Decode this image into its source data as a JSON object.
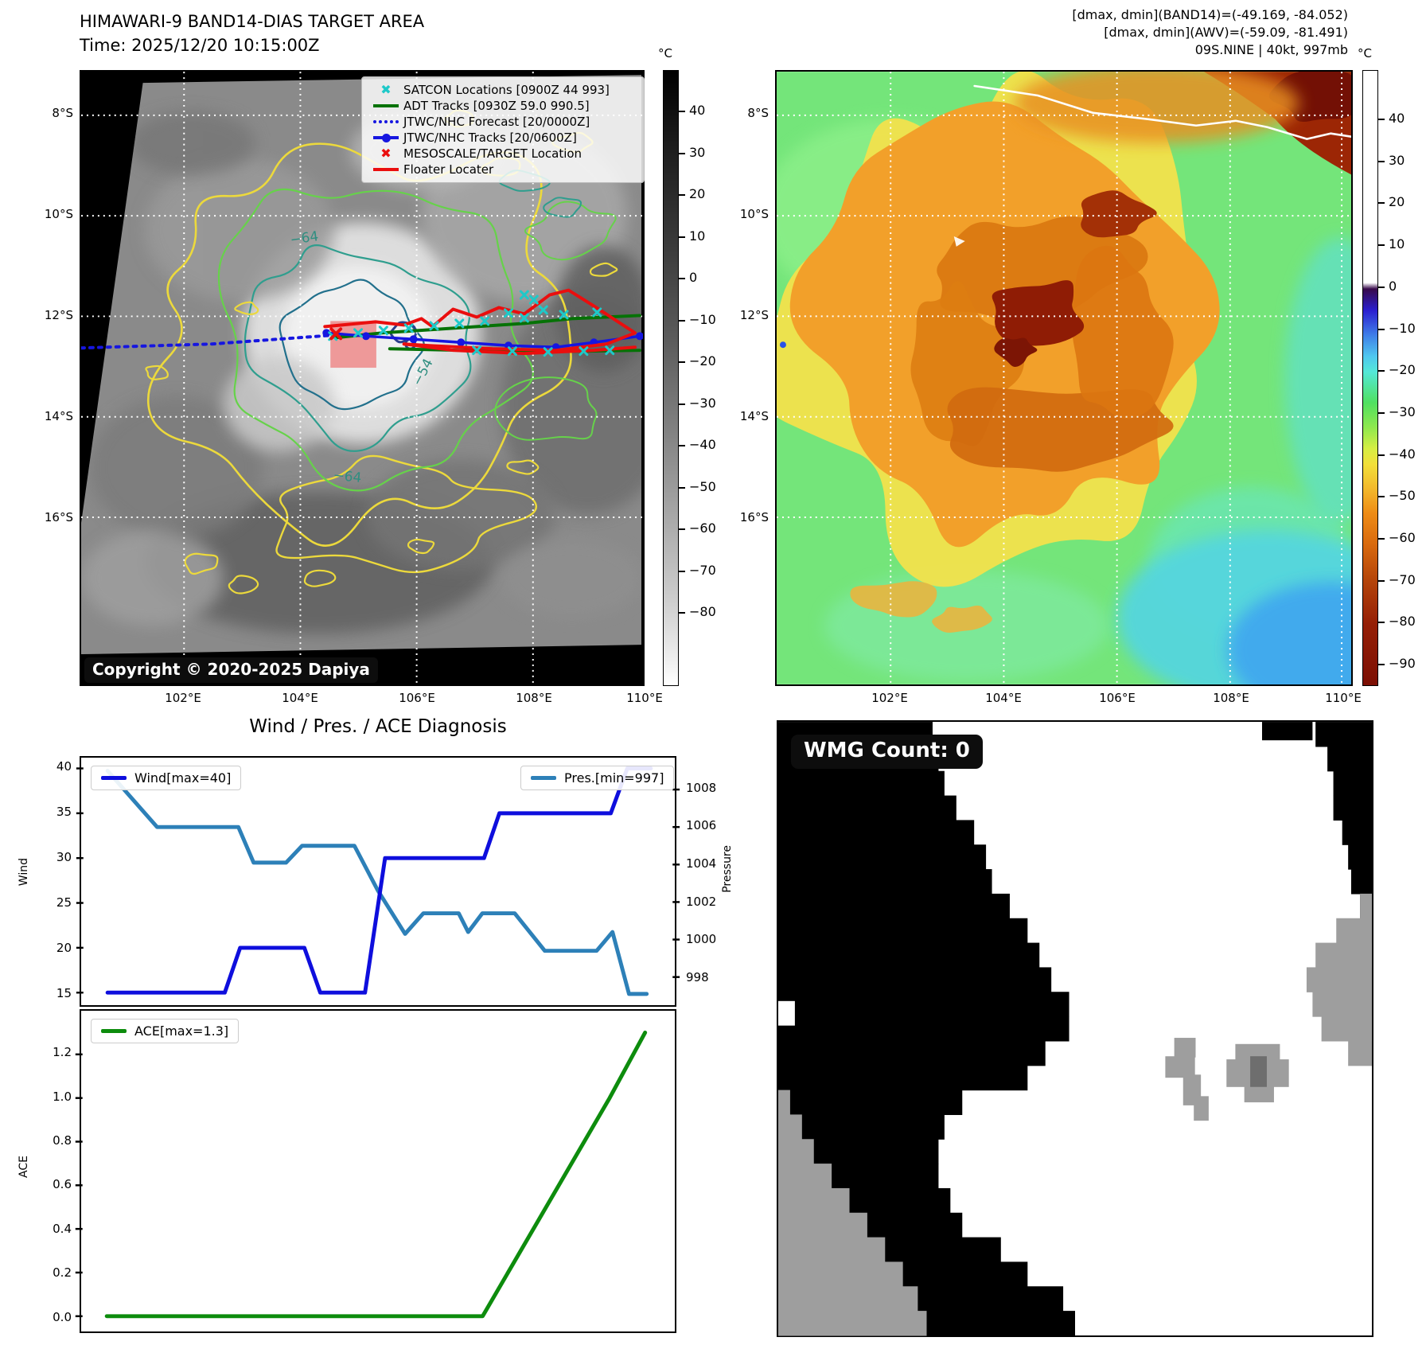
{
  "top_left": {
    "title": "HIMAWARI-9 BAND14-DIAS TARGET AREA",
    "time": "Time: 2025/12/20 10:15:00Z",
    "copyright": "Copyright © 2020-2025 Dapiya",
    "legend_items": [
      {
        "type": "cyan-x",
        "label": "SATCON Locations [0900Z 44 993]"
      },
      {
        "type": "green-line",
        "label": "ADT Tracks [0930Z 59.0 990.5]"
      },
      {
        "type": "blue-dotted",
        "label": "JTWC/NHC Forecast [20/0000Z]"
      },
      {
        "type": "blue-linedot",
        "label": "JTWC/NHC Tracks [20/0600Z]"
      },
      {
        "type": "red-x",
        "label": "MESOSCALE/TARGET Location"
      },
      {
        "type": "red-line",
        "label": "Floater Locater"
      }
    ],
    "contour_labels": [
      "-64",
      "-64",
      "-54"
    ],
    "lat_ticks": [
      "8°S",
      "10°S",
      "12°S",
      "14°S",
      "16°S"
    ],
    "lon_ticks": [
      "102°E",
      "104°E",
      "106°E",
      "108°E",
      "110°E"
    ],
    "colorbar": {
      "unit": "°C",
      "ticks": [
        40,
        30,
        20,
        10,
        0,
        -10,
        -20,
        -30,
        -40,
        -50,
        -60,
        -70,
        -80
      ]
    },
    "tracks": {
      "forecast_dotted": [
        [
          0,
          349
        ],
        [
          165,
          344
        ],
        [
          330,
          332
        ]
      ],
      "jtwc": [
        [
          310,
          330
        ],
        [
          360,
          334
        ],
        [
          420,
          338
        ],
        [
          480,
          342
        ],
        [
          540,
          346
        ],
        [
          600,
          348
        ],
        [
          648,
          342
        ],
        [
          706,
          334
        ]
      ],
      "adt": [
        [
          322,
          336
        ],
        [
          380,
          330
        ],
        [
          440,
          326
        ],
        [
          500,
          322
        ],
        [
          560,
          318
        ],
        [
          620,
          312
        ],
        [
          706,
          308
        ]
      ],
      "adt2": [
        [
          390,
          350
        ],
        [
          480,
          352
        ],
        [
          560,
          354
        ],
        [
          706,
          352
        ]
      ],
      "floater": [
        [
          308,
          322
        ],
        [
          372,
          316
        ],
        [
          408,
          320
        ],
        [
          430,
          312
        ],
        [
          444,
          322
        ],
        [
          470,
          300
        ],
        [
          500,
          310
        ],
        [
          528,
          298
        ],
        [
          560,
          306
        ],
        [
          592,
          282
        ],
        [
          616,
          276
        ],
        [
          648,
          296
        ],
        [
          700,
          330
        ],
        [
          664,
          344
        ],
        [
          600,
          352
        ],
        [
          520,
          350
        ],
        [
          440,
          346
        ],
        [
          408,
          344
        ]
      ],
      "floater2": [
        [
          408,
          344
        ],
        [
          470,
          352
        ],
        [
          560,
          356
        ],
        [
          648,
          352
        ],
        [
          700,
          348
        ]
      ],
      "satcon": [
        [
          318,
          334
        ],
        [
          350,
          330
        ],
        [
          382,
          327
        ],
        [
          414,
          324
        ],
        [
          446,
          321
        ],
        [
          478,
          318
        ],
        [
          510,
          315
        ],
        [
          560,
          311
        ],
        [
          610,
          307
        ],
        [
          652,
          304
        ],
        [
          584,
          301
        ],
        [
          540,
          305
        ],
        [
          500,
          352
        ],
        [
          545,
          353
        ],
        [
          590,
          354
        ],
        [
          635,
          353
        ],
        [
          668,
          352
        ],
        [
          560,
          282
        ],
        [
          572,
          288
        ]
      ],
      "target_xy": [
        322,
        331
      ],
      "target_rect": [
        315,
        315,
        58,
        59
      ]
    }
  },
  "top_right": {
    "header_lines": [
      "[dmax, dmin](BAND14)=(-49.169, -84.052)",
      "[dmax, dmin](AWV)=(-59.09, -81.491)",
      "09S.NINE | 40kt, 997mb"
    ],
    "lat_ticks": [
      "8°S",
      "10°S",
      "12°S",
      "14°S",
      "16°S"
    ],
    "lon_ticks": [
      "102°E",
      "104°E",
      "106°E",
      "108°E",
      "110°E"
    ],
    "colorbar": {
      "unit": "°C",
      "ticks": [
        40,
        30,
        20,
        10,
        0,
        -10,
        -20,
        -30,
        -40,
        -50,
        -60,
        -70,
        -80,
        -90
      ]
    }
  },
  "diagnosis": {
    "title": "Wind / Pres. / ACE Diagnosis",
    "wind_axis_label": "Wind",
    "pressure_axis_label": "Pressure",
    "ace_axis_label": "ACE"
  },
  "wmg": {
    "count_label": "WMG Count: 0"
  },
  "chart_data": [
    {
      "type": "line",
      "name": "Wind",
      "legend": "Wind[max=40]",
      "ylabel": "Wind",
      "ylim": [
        13.6,
        41.2
      ],
      "yticks": [
        40,
        35,
        30,
        25,
        20,
        15
      ],
      "points": [
        [
          0.041,
          15
        ],
        [
          0.24,
          15
        ],
        [
          0.266,
          20
        ],
        [
          0.375,
          20
        ],
        [
          0.402,
          15
        ],
        [
          0.478,
          15
        ],
        [
          0.512,
          30
        ],
        [
          0.68,
          30
        ],
        [
          0.706,
          35
        ],
        [
          0.895,
          35
        ],
        [
          0.923,
          40
        ],
        [
          0.963,
          40
        ]
      ]
    },
    {
      "type": "line",
      "name": "Pres.",
      "legend": "Pres.[min=997]",
      "ylabel": "Pressure",
      "ylim": [
        996.5,
        1009.7
      ],
      "yticks": [
        1008,
        1006,
        1004,
        1002,
        1000,
        998
      ],
      "points": [
        [
          0.041,
          1009.0
        ],
        [
          0.125,
          1006
        ],
        [
          0.263,
          1006
        ],
        [
          0.289,
          1004.1
        ],
        [
          0.344,
          1004.1
        ],
        [
          0.371,
          1005
        ],
        [
          0.46,
          1005
        ],
        [
          0.5,
          1002.6
        ],
        [
          0.546,
          1000.3
        ],
        [
          0.577,
          1001.4
        ],
        [
          0.637,
          1001.4
        ],
        [
          0.653,
          1000.4
        ],
        [
          0.677,
          1001.4
        ],
        [
          0.732,
          1001.4
        ],
        [
          0.783,
          999.4
        ],
        [
          0.871,
          999.4
        ],
        [
          0.898,
          1000.4
        ],
        [
          0.926,
          997.1
        ],
        [
          0.956,
          997.1
        ]
      ]
    },
    {
      "type": "line",
      "name": "ACE",
      "legend": "ACE[max=1.3]",
      "ylabel": "ACE",
      "ylim": [
        -0.07,
        1.4
      ],
      "yticks": [
        1.2,
        1.0,
        0.8,
        0.6,
        0.4,
        0.2,
        0.0
      ],
      "points": [
        [
          0.041,
          0
        ],
        [
          0.677,
          0
        ],
        [
          0.892,
          1.0
        ],
        [
          0.952,
          1.3
        ]
      ]
    }
  ],
  "wmg_data": {
    "black_left_rows": [
      0.26,
      0.27,
      0.28,
      0.3,
      0.33,
      0.35,
      0.36,
      0.39,
      0.42,
      0.44,
      0.46,
      0.49,
      0.49,
      0.45,
      0.42,
      0.31,
      0.28,
      0.27,
      0.27,
      0.29,
      0.31,
      0.375,
      0.42,
      0.48,
      0.5
    ],
    "gray_left": {
      "start_row": 15,
      "widths": [
        0.02,
        0.04,
        0.06,
        0.09,
        0.12,
        0.15,
        0.18,
        0.21,
        0.235,
        0.25
      ]
    },
    "black_right_rows": [
      0.095,
      0.075,
      0.065,
      0.065,
      0.05,
      0.04,
      0.035,
      0.02
    ],
    "gray_right": {
      "start_row": 7,
      "widths": [
        0.02,
        0.06,
        0.095,
        0.11,
        0.1,
        0.085,
        0.04
      ]
    },
    "extra_black": [
      [
        0.815,
        0.0,
        0.085,
        0.03
      ]
    ],
    "white_notch": [
      0.0,
      0.455,
      0.028,
      0.04
    ],
    "gray_cells": [
      [
        0.667,
        0.515,
        0.036,
        0.032
      ],
      [
        0.652,
        0.545,
        0.05,
        0.035
      ],
      [
        0.682,
        0.575,
        0.03,
        0.05
      ],
      [
        0.7,
        0.61,
        0.025,
        0.04
      ],
      [
        0.77,
        0.525,
        0.075,
        0.03
      ],
      [
        0.755,
        0.55,
        0.105,
        0.045
      ],
      [
        0.785,
        0.59,
        0.05,
        0.03
      ]
    ],
    "dark_cell": [
      0.795,
      0.545,
      0.028,
      0.05
    ]
  },
  "colors": {
    "wind": "#0e0edd",
    "pres": "#2d80b8",
    "ace": "#0d8c0d",
    "track_red": "#ea0e0e",
    "track_green": "#067206",
    "track_blue": "#1616e0",
    "satcon_cyan": "#1ec9c9",
    "target_pink": "#ee8383",
    "contour_yellow": "#ecd93c",
    "contour_green": "#66d24a",
    "contour_teal": "#2f9e8e",
    "wmg_gray": "#9e9e9e",
    "wmg_dark_gray": "#6e6e6e"
  }
}
